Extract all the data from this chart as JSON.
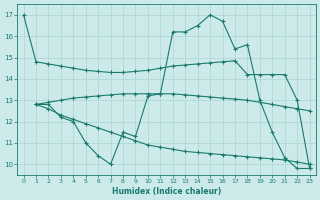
{
  "xlabel": "Humidex (Indice chaleur)",
  "xlim": [
    -0.5,
    23.5
  ],
  "ylim": [
    9.5,
    17.5
  ],
  "yticks": [
    10,
    11,
    12,
    13,
    14,
    15,
    16,
    17
  ],
  "xticks": [
    0,
    1,
    2,
    3,
    4,
    5,
    6,
    7,
    8,
    9,
    10,
    11,
    12,
    13,
    14,
    15,
    16,
    17,
    18,
    19,
    20,
    21,
    22,
    23
  ],
  "bg_color": "#cceaea",
  "line_color": "#1a7a6e",
  "grid_color": "#b0d8d8",
  "lines": [
    {
      "x": [
        0,
        1,
        2,
        3,
        4,
        5,
        6,
        7,
        8,
        9,
        10,
        11,
        12,
        13,
        14,
        15,
        16,
        17,
        18,
        19,
        20,
        21,
        22,
        23
      ],
      "y": [
        17.0,
        14.8,
        14.7,
        14.6,
        14.5,
        14.4,
        14.35,
        14.3,
        14.3,
        14.35,
        14.4,
        14.5,
        14.6,
        14.65,
        14.7,
        14.75,
        14.8,
        14.85,
        14.2,
        14.2,
        14.2,
        14.2,
        13.0,
        9.8
      ]
    },
    {
      "x": [
        1,
        2,
        3,
        4,
        5,
        6,
        7,
        8,
        9,
        10,
        11,
        12,
        13,
        14,
        15,
        16,
        17,
        18,
        19,
        20,
        21,
        22,
        23
      ],
      "y": [
        12.8,
        12.8,
        12.2,
        12.0,
        11.0,
        10.4,
        10.0,
        11.5,
        11.3,
        13.2,
        13.3,
        16.2,
        16.2,
        16.5,
        17.0,
        16.7,
        15.4,
        15.6,
        13.0,
        11.5,
        10.3,
        9.8,
        9.8
      ]
    },
    {
      "x": [
        1,
        2,
        3,
        4,
        5,
        6,
        7,
        8,
        9,
        10,
        11,
        12,
        13,
        14,
        15,
        16,
        17,
        18,
        19,
        20,
        21,
        22,
        23
      ],
      "y": [
        12.8,
        12.9,
        13.0,
        13.1,
        13.15,
        13.2,
        13.25,
        13.3,
        13.3,
        13.3,
        13.3,
        13.3,
        13.25,
        13.2,
        13.15,
        13.1,
        13.05,
        13.0,
        12.9,
        12.8,
        12.7,
        12.6,
        12.5
      ]
    },
    {
      "x": [
        1,
        2,
        3,
        4,
        5,
        6,
        7,
        8,
        9,
        10,
        11,
        12,
        13,
        14,
        15,
        16,
        17,
        18,
        19,
        20,
        21,
        22,
        23
      ],
      "y": [
        12.8,
        12.6,
        12.3,
        12.1,
        11.9,
        11.7,
        11.5,
        11.3,
        11.1,
        10.9,
        10.8,
        10.7,
        10.6,
        10.55,
        10.5,
        10.45,
        10.4,
        10.35,
        10.3,
        10.25,
        10.2,
        10.1,
        10.0
      ]
    }
  ]
}
